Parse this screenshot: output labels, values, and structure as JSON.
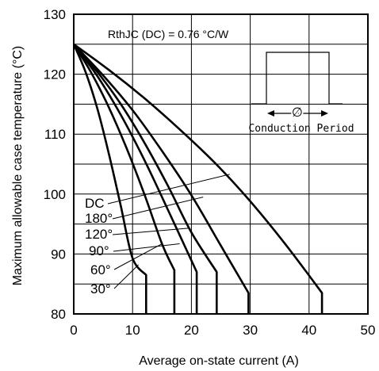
{
  "chart_data": {
    "type": "line",
    "xlabel": "Average on-state current (A)",
    "ylabel": "Maximum allowable case temperature (°C)",
    "xlim": [
      0,
      50
    ],
    "ylim": [
      80,
      130
    ],
    "x_ticks": [
      "0",
      "10",
      "20",
      "30",
      "40",
      "50"
    ],
    "y_ticks": [
      "80",
      "90",
      "100",
      "110",
      "120",
      "130"
    ],
    "grid": true,
    "annotation": "RthJC (DC) = 0.76 °C/W",
    "inset_label": "Conduction Period",
    "inset_symbol": "∅",
    "series": [
      {
        "name": "30°",
        "x": [
          0,
          2,
          4,
          6,
          8,
          10,
          12.3,
          12.3
        ],
        "y": [
          125,
          120.4,
          114.3,
          106.6,
          98.0,
          89.3,
          86.5,
          80
        ]
      },
      {
        "name": "60°",
        "x": [
          0,
          3,
          6,
          9,
          12,
          15,
          17.1,
          17.1
        ],
        "y": [
          125,
          120.2,
          114.4,
          107.6,
          100.0,
          91.7,
          87.3,
          80
        ]
      },
      {
        "name": "90°",
        "x": [
          0,
          4,
          8,
          12,
          16,
          20.9,
          20.9
        ],
        "y": [
          125,
          119.7,
          113.2,
          105.7,
          97.4,
          87.0,
          80
        ]
      },
      {
        "name": "120°",
        "x": [
          0,
          4,
          8,
          12,
          16,
          20,
          24.3,
          24.3
        ],
        "y": [
          125,
          120.4,
          115.0,
          108.6,
          101.4,
          93.6,
          87.0,
          80
        ]
      },
      {
        "name": "180°",
        "x": [
          0,
          5,
          10,
          15,
          20,
          25,
          29.7,
          29.7
        ],
        "y": [
          125,
          119.8,
          114.0,
          107.2,
          99.8,
          91.4,
          83.5,
          80
        ]
      },
      {
        "name": "DC",
        "x": [
          0,
          6,
          12,
          18,
          24,
          30,
          36,
          42.2,
          42.2
        ],
        "y": [
          125,
          120.7,
          116.0,
          110.8,
          105.2,
          98.8,
          91.6,
          83.5,
          80
        ]
      }
    ]
  }
}
